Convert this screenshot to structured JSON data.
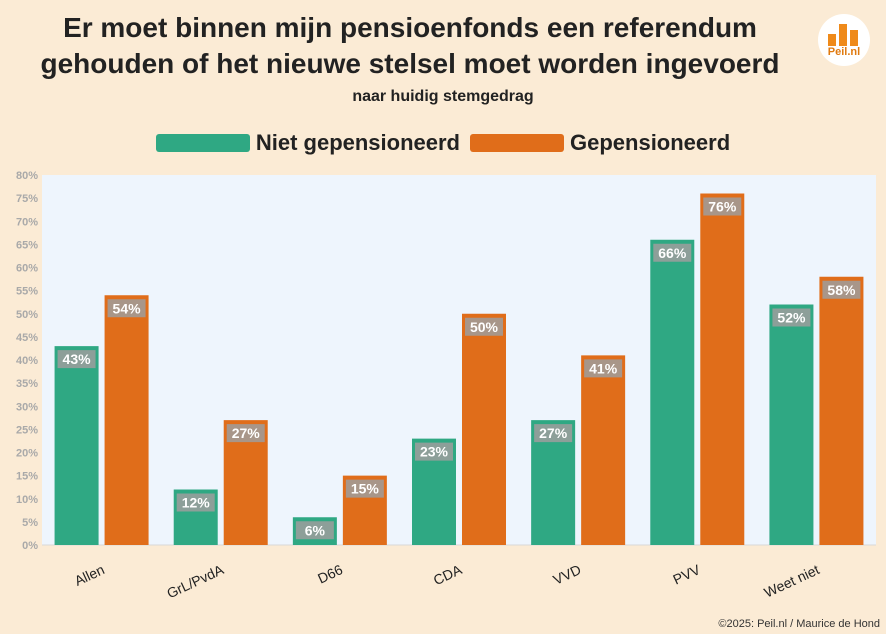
{
  "header": {
    "title_line1": "Er moet binnen mijn pensioenfonds een referendum",
    "title_line2": "gehouden of het nieuwe stelsel moet worden ingevoerd",
    "subtitle": "naar huidig stemgedrag"
  },
  "logo": {
    "text": "Peil.nl",
    "icon": "bar-chart-logo-icon"
  },
  "footer": {
    "credit": "©2025: Peil.nl / Maurice de Hond"
  },
  "colors": {
    "background": "#fbebd5",
    "plot_background": "#eef5fd",
    "series1": "#2fa883",
    "series2": "#e06d1a",
    "label_box": "#9e9e9e"
  },
  "chart_data": {
    "type": "bar",
    "categories": [
      "Allen",
      "GrL/PvdA",
      "D66",
      "CDA",
      "VVD",
      "PVV",
      "Weet niet"
    ],
    "series": [
      {
        "name": "Niet gepensioneerd",
        "values": [
          43,
          12,
          6,
          23,
          27,
          66,
          52
        ],
        "labels": [
          "43%",
          "12%",
          "6%",
          "23%",
          "27%",
          "66%",
          "52%"
        ]
      },
      {
        "name": "Gepensioneerd",
        "values": [
          54,
          27,
          15,
          50,
          41,
          76,
          58
        ],
        "labels": [
          "54%",
          "27%",
          "15%",
          "50%",
          "41%",
          "76%",
          "58%"
        ]
      }
    ],
    "ylim": [
      0,
      80
    ],
    "yticks": [
      "0%",
      "5%",
      "10%",
      "15%",
      "20%",
      "25%",
      "30%",
      "35%",
      "40%",
      "45%",
      "50%",
      "55%",
      "60%",
      "65%",
      "70%",
      "75%",
      "80%"
    ],
    "grid": false,
    "legend_position": "top-center"
  }
}
